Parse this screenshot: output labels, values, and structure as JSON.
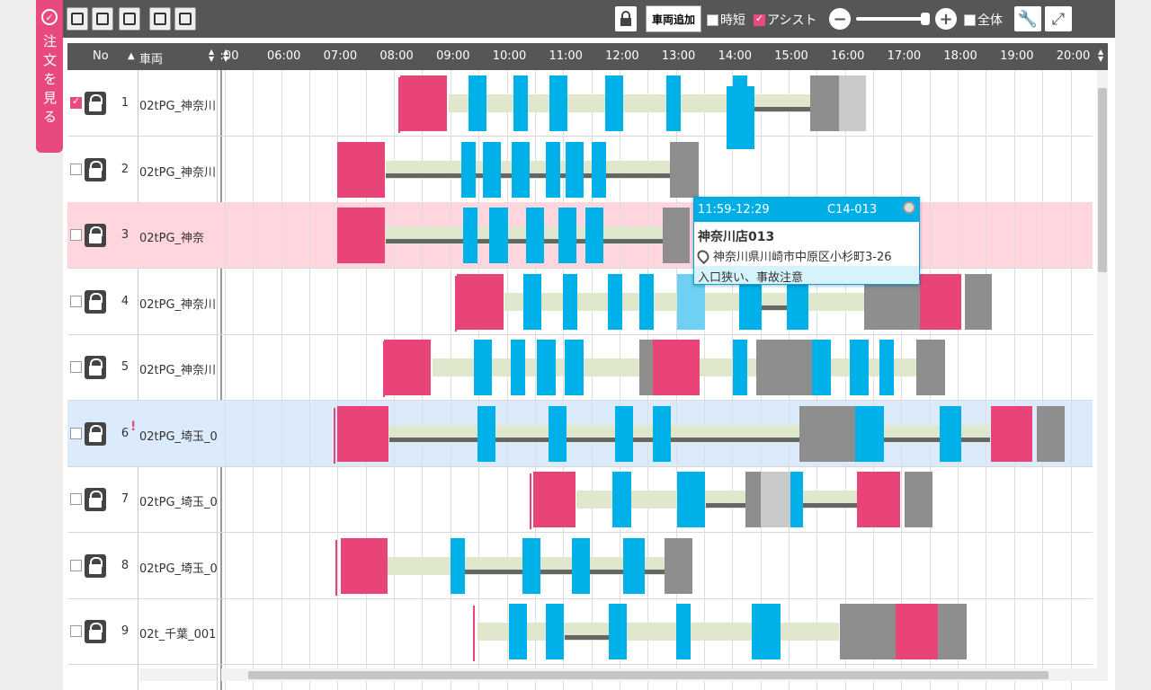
{
  "side_tab": {
    "label": "注文を見る",
    "icon": "check-circle-icon"
  },
  "toolbar": {
    "view_buttons": [
      "list-view-icon",
      "vehicle-view-icon",
      "tray-view-icon",
      "split-view-icon",
      "copy-view-icon"
    ],
    "add_vehicle": "車両追加",
    "short_time": {
      "label": "時短",
      "checked": false
    },
    "assist": {
      "label": "アシスト",
      "checked": true
    },
    "all": {
      "label": "全体",
      "checked": false
    },
    "icons": {
      "lock": "lock-icon",
      "zoom_out": "zoom-out-icon",
      "zoom_in": "zoom-in-icon",
      "settings": "wrench-icon",
      "fit": "fit-screen-icon"
    }
  },
  "header": {
    "no": "No",
    "vehicle": "車両",
    "times": [
      ":00",
      "06:00",
      "07:00",
      "08:00",
      "09:00",
      "10:00",
      "11:00",
      "12:00",
      "13:00",
      "14:00",
      "15:00",
      "16:00",
      "17:00",
      "18:00",
      "19:00",
      "20:00"
    ]
  },
  "rows": [
    {
      "no": "1",
      "vehicle": "02tPG_神奈川",
      "checked": true
    },
    {
      "no": "2",
      "vehicle": "02tPG_神奈川",
      "checked": false
    },
    {
      "no": "3",
      "vehicle": "02tPG_神奈",
      "checked": false
    },
    {
      "no": "4",
      "vehicle": "02tPG_神奈川",
      "checked": false
    },
    {
      "no": "5",
      "vehicle": "02tPG_神奈川",
      "checked": false
    },
    {
      "no": "6",
      "vehicle": "02tPG_埼玉_0",
      "checked": false,
      "warning": "!"
    },
    {
      "no": "7",
      "vehicle": "02tPG_埼玉_0",
      "checked": false
    },
    {
      "no": "8",
      "vehicle": "02tPG_埼玉_0",
      "checked": false
    },
    {
      "no": "9",
      "vehicle": "02t_千葉_001",
      "checked": false
    }
  ],
  "popup": {
    "time": "11:59-12:29",
    "code": "C14-013",
    "name": "神奈川店013",
    "address": "神奈川県川崎市中原区小杉町3-26",
    "note": "入口狭い、事故注意"
  },
  "colors": {
    "accent": "#e94a7e",
    "blue": "#00b0e8",
    "gray": "#8e8e8e",
    "track": "#dfe8cc"
  }
}
